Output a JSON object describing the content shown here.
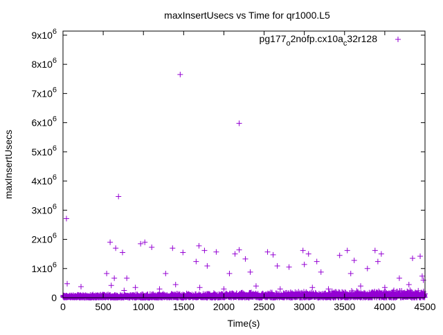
{
  "chart_data": {
    "type": "scatter",
    "title": "maxInsertUsecs vs Time for qr1000.L5",
    "xlabel": "Time(s)",
    "ylabel": "maxInsertUsecs",
    "xlim": [
      0,
      4500
    ],
    "ylim": [
      0,
      9140000
    ],
    "grid": false,
    "legend_position": "top-right",
    "x_ticks": [
      0,
      500,
      1000,
      1500,
      2000,
      2500,
      3000,
      3500,
      4000,
      4500
    ],
    "x_tick_labels": [
      "0",
      "500",
      "1000",
      "1500",
      "2000",
      "2500",
      "3000",
      "3500",
      "4000",
      "4500"
    ],
    "y_ticks": [
      0,
      1000000,
      2000000,
      3000000,
      4000000,
      5000000,
      6000000,
      7000000,
      8000000,
      9000000
    ],
    "y_tick_labels": [
      {
        "mant": "0",
        "exp": ""
      },
      {
        "mant": "1x10",
        "exp": "6"
      },
      {
        "mant": "2x10",
        "exp": "6"
      },
      {
        "mant": "3x10",
        "exp": "6"
      },
      {
        "mant": "4x10",
        "exp": "6"
      },
      {
        "mant": "5x10",
        "exp": "6"
      },
      {
        "mant": "6x10",
        "exp": "6"
      },
      {
        "mant": "7x10",
        "exp": "6"
      },
      {
        "mant": "8x10",
        "exp": "6"
      },
      {
        "mant": "9x10",
        "exp": "6"
      }
    ],
    "series": [
      {
        "name": "pg177_o2nofp.cx10a_c32r128",
        "legend_parts": [
          {
            "text": "pg177",
            "sub": false
          },
          {
            "text": "o",
            "sub": true
          },
          {
            "text": "2nofp.cx10a",
            "sub": false
          },
          {
            "text": "c",
            "sub": true
          },
          {
            "text": "32r128",
            "sub": false
          }
        ],
        "color": "#9400D3",
        "marker": "plus",
        "outliers": [
          [
            43,
            2710000
          ],
          [
            52,
            480000
          ],
          [
            224,
            380000
          ],
          [
            543,
            830000
          ],
          [
            586,
            1900000
          ],
          [
            638,
            670000
          ],
          [
            655,
            1700000
          ],
          [
            690,
            3470000
          ],
          [
            740,
            1550000
          ],
          [
            793,
            670000
          ],
          [
            965,
            1850000
          ],
          [
            1017,
            1900000
          ],
          [
            1103,
            1730000
          ],
          [
            1276,
            830000
          ],
          [
            1362,
            1700000
          ],
          [
            1457,
            7650000
          ],
          [
            1491,
            1550000
          ],
          [
            1655,
            1240000
          ],
          [
            1690,
            1780000
          ],
          [
            1759,
            1620000
          ],
          [
            1793,
            1090000
          ],
          [
            1905,
            1570000
          ],
          [
            2069,
            830000
          ],
          [
            2138,
            1500000
          ],
          [
            2190,
            5980000
          ],
          [
            2190,
            1640000
          ],
          [
            2267,
            1330000
          ],
          [
            2328,
            880000
          ],
          [
            2543,
            1570000
          ],
          [
            2612,
            1470000
          ],
          [
            2664,
            1090000
          ],
          [
            2810,
            1050000
          ],
          [
            2983,
            1620000
          ],
          [
            3000,
            1140000
          ],
          [
            3052,
            1500000
          ],
          [
            3155,
            1240000
          ],
          [
            3207,
            880000
          ],
          [
            3439,
            1450000
          ],
          [
            3534,
            1620000
          ],
          [
            3577,
            830000
          ],
          [
            3620,
            1280000
          ],
          [
            3784,
            1000000
          ],
          [
            3879,
            1620000
          ],
          [
            3914,
            1240000
          ],
          [
            3957,
            1500000
          ],
          [
            4181,
            670000
          ],
          [
            4345,
            1350000
          ],
          [
            4440,
            1420000
          ],
          [
            4465,
            740000
          ],
          [
            600,
            420000
          ],
          [
            760,
            250000
          ],
          [
            900,
            350000
          ],
          [
            1200,
            300000
          ],
          [
            1400,
            450000
          ],
          [
            1700,
            350000
          ],
          [
            2000,
            300000
          ],
          [
            2400,
            400000
          ],
          [
            2700,
            300000
          ],
          [
            3100,
            350000
          ],
          [
            3300,
            300000
          ],
          [
            3700,
            400000
          ],
          [
            4000,
            350000
          ],
          [
            4300,
            450000
          ],
          [
            4480,
            600000
          ]
        ],
        "band": {
          "x_start": 0,
          "x_end": 4500,
          "step": 3,
          "top_start": 100000,
          "top_end": 280000
        }
      }
    ]
  }
}
